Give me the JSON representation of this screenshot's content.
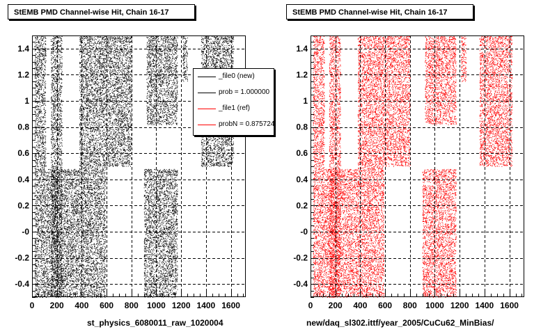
{
  "chart_data": [
    {
      "type": "scatter",
      "title": "StEMB PMD Channel-wise Hit, Chain 16-17",
      "xlabel": "st_physics_6080011_raw_1020004",
      "ylabel": "",
      "xlim": [
        0,
        1720
      ],
      "ylim": [
        -0.5,
        1.5
      ],
      "xticks": [
        0,
        200,
        400,
        600,
        800,
        1000,
        1200,
        1400,
        1600
      ],
      "yticks": [
        -0.4,
        -0.2,
        0,
        0.2,
        0.4,
        0.6,
        0.8,
        1,
        1.2,
        1.4
      ],
      "ytick_labels": [
        "-0.4",
        "-0.2",
        "-0",
        "0.2",
        "0.4",
        "0.6",
        "0.8",
        "1",
        "1.2",
        "1.4"
      ],
      "grid": true,
      "marker_color": "#000000",
      "series": [
        {
          "name": "_file0 (new)",
          "color": "#000000"
        }
      ],
      "hit_regions": [
        {
          "x": [
            20,
            110
          ],
          "y": [
            1.5,
            0.48
          ]
        },
        {
          "x": [
            150,
            240
          ],
          "y": [
            1.5,
            -0.5
          ]
        },
        {
          "x": [
            20,
            380
          ],
          "y": [
            0.48,
            -0.5
          ]
        },
        {
          "x": [
            380,
            800
          ],
          "y": [
            1.5,
            0.5
          ]
        },
        {
          "x": [
            380,
            590
          ],
          "y": [
            0.5,
            -0.5
          ]
        },
        {
          "x": [
            900,
            1170
          ],
          "y": [
            0.48,
            -0.5
          ]
        },
        {
          "x": [
            920,
            1170
          ],
          "y": [
            1.5,
            0.82
          ]
        },
        {
          "x": [
            1210,
            1250
          ],
          "y": [
            1.5,
            1.15
          ]
        },
        {
          "x": [
            1360,
            1620
          ],
          "y": [
            1.5,
            0.5
          ]
        }
      ],
      "legend": {
        "position": "top-right",
        "entries": [
          {
            "label": "_file0 (new)",
            "color": "#000000"
          },
          {
            "label": "prob = 1.000000",
            "color": "#000000"
          },
          {
            "label": "_file1 (ref)",
            "color": "#ff0000"
          },
          {
            "label": "probN = 0.875724",
            "color": "#ff0000"
          }
        ]
      }
    },
    {
      "type": "scatter",
      "title": "StEMB PMD Channel-wise Hit, Chain 16-17",
      "xlabel": "new/daq_sl302.ittf/year_2005/CuCu62_MinBias/",
      "ylabel": "",
      "xlim": [
        0,
        1720
      ],
      "ylim": [
        -0.5,
        1.5
      ],
      "xticks": [
        0,
        200,
        400,
        600,
        800,
        1000,
        1200,
        1400,
        1600
      ],
      "yticks": [
        -0.4,
        -0.2,
        0,
        0.2,
        0.4,
        0.6,
        0.8,
        1,
        1.2,
        1.4
      ],
      "ytick_labels": [
        "-0.4",
        "-0.2",
        "-0",
        "0.2",
        "0.4",
        "0.6",
        "0.8",
        "1",
        "1.2",
        "1.4"
      ],
      "grid": true,
      "marker_color": "#ff0000",
      "series": [
        {
          "name": "_file1 (ref)",
          "color": "#ff0000"
        }
      ],
      "hit_regions": [
        {
          "x": [
            20,
            110
          ],
          "y": [
            1.5,
            0.48
          ]
        },
        {
          "x": [
            150,
            240
          ],
          "y": [
            1.5,
            -0.5
          ]
        },
        {
          "x": [
            20,
            380
          ],
          "y": [
            0.48,
            -0.5
          ]
        },
        {
          "x": [
            380,
            800
          ],
          "y": [
            1.5,
            0.5
          ]
        },
        {
          "x": [
            380,
            590
          ],
          "y": [
            0.5,
            -0.5
          ]
        },
        {
          "x": [
            900,
            1170
          ],
          "y": [
            0.48,
            -0.5
          ]
        },
        {
          "x": [
            920,
            1170
          ],
          "y": [
            1.5,
            0.82
          ]
        },
        {
          "x": [
            1210,
            1250
          ],
          "y": [
            1.5,
            1.15
          ]
        },
        {
          "x": [
            1360,
            1620
          ],
          "y": [
            1.5,
            0.5
          ]
        }
      ]
    }
  ]
}
